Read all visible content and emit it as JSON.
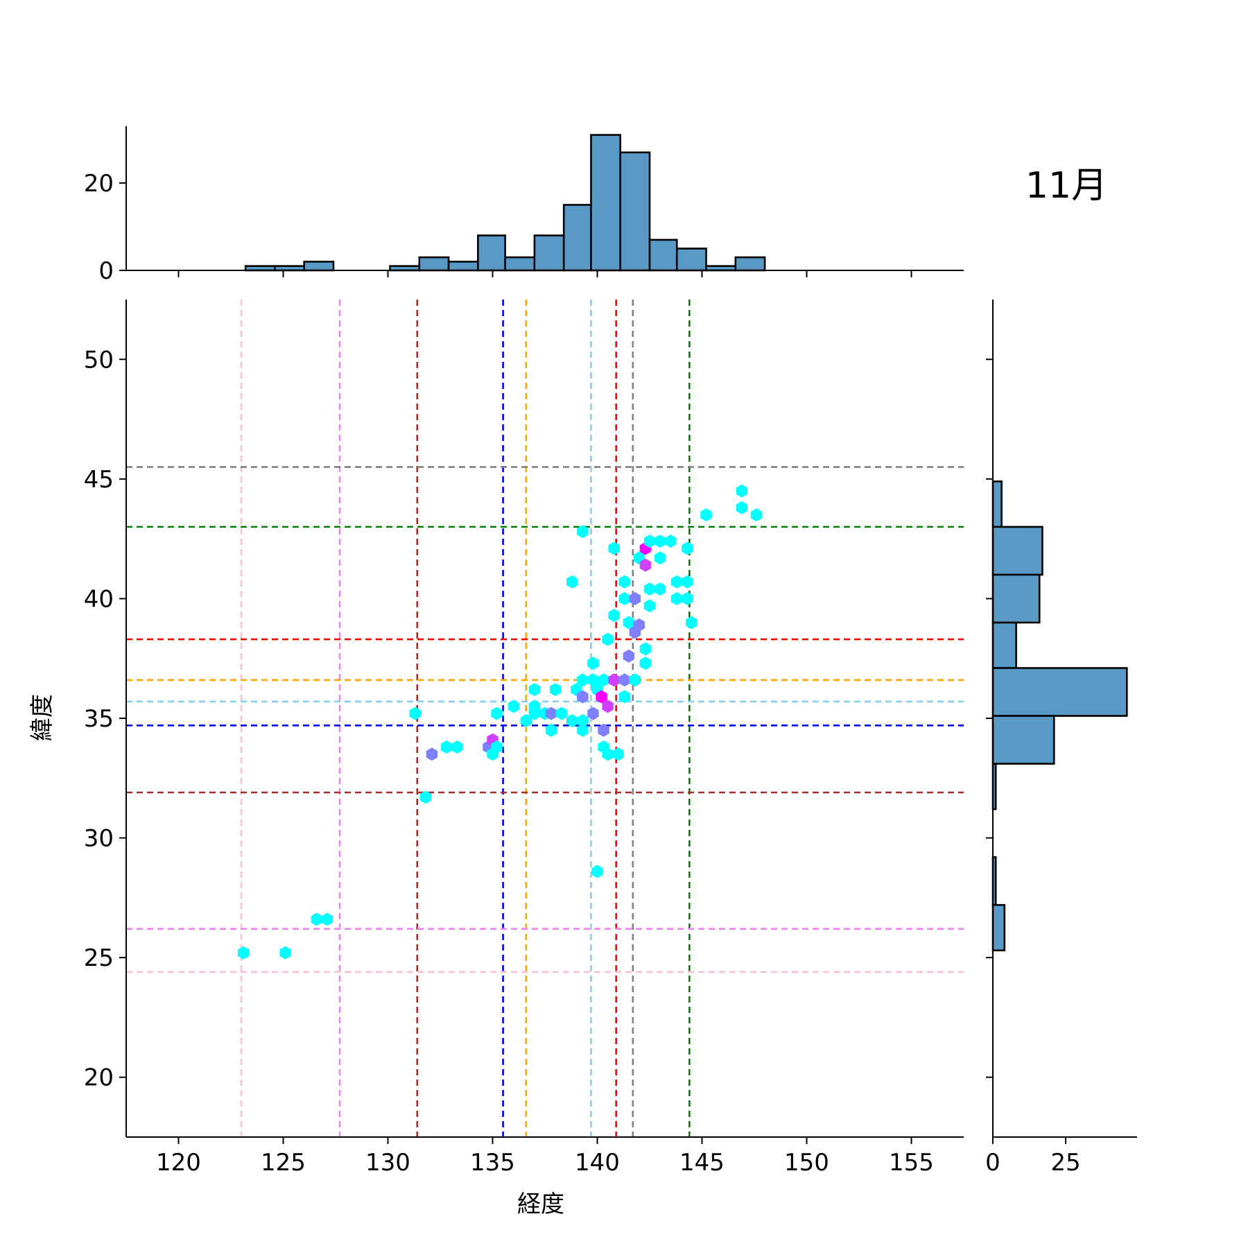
{
  "chart_data": {
    "type": "hexbin-joint",
    "title": "11月",
    "xlabel": "経度",
    "ylabel": "緯度",
    "xlim": [
      117.5,
      157.5
    ],
    "ylim": [
      17.5,
      52.5
    ],
    "xticks": [
      "120",
      "125",
      "130",
      "135",
      "140",
      "145",
      "150",
      "155"
    ],
    "yticks": [
      "20",
      "25",
      "30",
      "35",
      "40",
      "45",
      "50"
    ],
    "top_hist_yticks": [
      "0",
      "20"
    ],
    "right_hist_xticks": [
      "0",
      "25"
    ],
    "colors": {
      "bar_fill": "#5899c6",
      "hex_low": "#00ffff",
      "hex_mid": "#8080ff",
      "hex_high": "#ff00ff"
    },
    "vlines": [
      {
        "x": 123.0,
        "color": "#ffc0cb"
      },
      {
        "x": 127.7,
        "color": "#ee82ee"
      },
      {
        "x": 131.4,
        "color": "#a52a2a"
      },
      {
        "x": 135.5,
        "color": "#0000ff"
      },
      {
        "x": 136.6,
        "color": "#ffa500"
      },
      {
        "x": 139.7,
        "color": "#87ceeb"
      },
      {
        "x": 140.9,
        "color": "#ff0000"
      },
      {
        "x": 141.7,
        "color": "#808080"
      },
      {
        "x": 144.4,
        "color": "#008000"
      }
    ],
    "hlines": [
      {
        "y": 45.5,
        "color": "#808080"
      },
      {
        "y": 43.0,
        "color": "#008000"
      },
      {
        "y": 38.3,
        "color": "#ff0000"
      },
      {
        "y": 36.6,
        "color": "#ffa500"
      },
      {
        "y": 35.7,
        "color": "#87ceeb"
      },
      {
        "y": 34.7,
        "color": "#0000ff"
      },
      {
        "y": 31.9,
        "color": "#a52a2a"
      },
      {
        "y": 26.2,
        "color": "#ee82ee"
      },
      {
        "y": 24.4,
        "color": "#ffc0cb"
      }
    ],
    "x_hist": {
      "bins": [
        [
          123.2,
          124.6,
          1
        ],
        [
          124.6,
          126.0,
          1
        ],
        [
          126.0,
          127.4,
          2
        ],
        [
          127.4,
          128.8,
          0
        ],
        [
          128.8,
          130.1,
          0
        ],
        [
          130.1,
          131.5,
          1
        ],
        [
          131.5,
          132.9,
          3
        ],
        [
          132.9,
          134.3,
          2
        ],
        [
          134.3,
          135.6,
          8
        ],
        [
          135.6,
          137.0,
          3
        ],
        [
          137.0,
          138.4,
          8
        ],
        [
          138.4,
          139.7,
          15
        ],
        [
          139.7,
          141.1,
          31
        ],
        [
          141.1,
          142.5,
          27
        ],
        [
          142.5,
          143.8,
          7
        ],
        [
          143.8,
          145.2,
          5
        ],
        [
          145.2,
          146.6,
          1
        ],
        [
          146.6,
          148.0,
          3
        ]
      ]
    },
    "y_hist": {
      "bins": [
        [
          43.0,
          44.9,
          3
        ],
        [
          41.0,
          43.0,
          17
        ],
        [
          39.0,
          41.0,
          16
        ],
        [
          37.1,
          39.0,
          8
        ],
        [
          35.1,
          37.1,
          46
        ],
        [
          33.1,
          35.1,
          21
        ],
        [
          31.2,
          33.1,
          1
        ],
        [
          29.2,
          31.2,
          0
        ],
        [
          27.2,
          29.2,
          1
        ],
        [
          25.3,
          27.2,
          4
        ]
      ]
    },
    "hexbins": [
      {
        "x": 123.1,
        "y": 25.2,
        "count": 1
      },
      {
        "x": 125.1,
        "y": 25.2,
        "count": 1
      },
      {
        "x": 126.6,
        "y": 26.6,
        "count": 1
      },
      {
        "x": 127.1,
        "y": 26.6,
        "count": 1
      },
      {
        "x": 131.3,
        "y": 35.2,
        "count": 1
      },
      {
        "x": 131.8,
        "y": 31.7,
        "count": 1
      },
      {
        "x": 132.1,
        "y": 33.5,
        "count": 2
      },
      {
        "x": 132.8,
        "y": 33.8,
        "count": 1
      },
      {
        "x": 133.3,
        "y": 33.8,
        "count": 1
      },
      {
        "x": 134.8,
        "y": 33.8,
        "count": 2
      },
      {
        "x": 135.0,
        "y": 34.1,
        "count": 3
      },
      {
        "x": 135.0,
        "y": 33.5,
        "count": 1
      },
      {
        "x": 135.2,
        "y": 33.8,
        "count": 1
      },
      {
        "x": 135.2,
        "y": 35.2,
        "count": 1
      },
      {
        "x": 136.0,
        "y": 35.5,
        "count": 1
      },
      {
        "x": 136.6,
        "y": 34.9,
        "count": 1
      },
      {
        "x": 137.0,
        "y": 35.2,
        "count": 1
      },
      {
        "x": 137.0,
        "y": 35.5,
        "count": 1
      },
      {
        "x": 137.0,
        "y": 36.2,
        "count": 1
      },
      {
        "x": 137.5,
        "y": 35.2,
        "count": 1
      },
      {
        "x": 137.8,
        "y": 35.2,
        "count": 2
      },
      {
        "x": 137.8,
        "y": 34.5,
        "count": 1
      },
      {
        "x": 138.0,
        "y": 36.2,
        "count": 1
      },
      {
        "x": 138.3,
        "y": 35.2,
        "count": 1
      },
      {
        "x": 138.8,
        "y": 34.9,
        "count": 1
      },
      {
        "x": 138.8,
        "y": 40.7,
        "count": 1
      },
      {
        "x": 139.0,
        "y": 36.2,
        "count": 1
      },
      {
        "x": 139.3,
        "y": 36.6,
        "count": 1
      },
      {
        "x": 139.3,
        "y": 35.9,
        "count": 2
      },
      {
        "x": 139.3,
        "y": 34.9,
        "count": 1
      },
      {
        "x": 139.3,
        "y": 34.5,
        "count": 1
      },
      {
        "x": 139.3,
        "y": 42.8,
        "count": 1
      },
      {
        "x": 139.8,
        "y": 35.2,
        "count": 2
      },
      {
        "x": 139.8,
        "y": 36.6,
        "count": 1
      },
      {
        "x": 139.8,
        "y": 37.3,
        "count": 1
      },
      {
        "x": 140.0,
        "y": 36.2,
        "count": 1
      },
      {
        "x": 140.0,
        "y": 28.6,
        "count": 1
      },
      {
        "x": 140.2,
        "y": 35.9,
        "count": 4
      },
      {
        "x": 140.3,
        "y": 36.6,
        "count": 1
      },
      {
        "x": 140.3,
        "y": 34.5,
        "count": 2
      },
      {
        "x": 140.3,
        "y": 33.8,
        "count": 1
      },
      {
        "x": 140.5,
        "y": 35.5,
        "count": 3
      },
      {
        "x": 140.5,
        "y": 38.3,
        "count": 1
      },
      {
        "x": 140.5,
        "y": 33.5,
        "count": 1
      },
      {
        "x": 140.8,
        "y": 36.6,
        "count": 3
      },
      {
        "x": 140.8,
        "y": 39.3,
        "count": 1
      },
      {
        "x": 140.8,
        "y": 42.1,
        "count": 1
      },
      {
        "x": 141.0,
        "y": 33.5,
        "count": 1
      },
      {
        "x": 141.3,
        "y": 36.6,
        "count": 2
      },
      {
        "x": 141.3,
        "y": 35.9,
        "count": 1
      },
      {
        "x": 141.3,
        "y": 40.0,
        "count": 1
      },
      {
        "x": 141.3,
        "y": 40.7,
        "count": 1
      },
      {
        "x": 141.5,
        "y": 39.0,
        "count": 1
      },
      {
        "x": 141.5,
        "y": 37.6,
        "count": 2
      },
      {
        "x": 141.8,
        "y": 36.6,
        "count": 1
      },
      {
        "x": 141.8,
        "y": 38.6,
        "count": 2
      },
      {
        "x": 141.8,
        "y": 40.0,
        "count": 2
      },
      {
        "x": 142.0,
        "y": 38.9,
        "count": 2
      },
      {
        "x": 142.0,
        "y": 41.7,
        "count": 1
      },
      {
        "x": 142.3,
        "y": 42.1,
        "count": 4
      },
      {
        "x": 142.3,
        "y": 41.4,
        "count": 3
      },
      {
        "x": 142.3,
        "y": 37.9,
        "count": 1
      },
      {
        "x": 142.3,
        "y": 37.3,
        "count": 1
      },
      {
        "x": 142.5,
        "y": 42.4,
        "count": 1
      },
      {
        "x": 142.5,
        "y": 40.4,
        "count": 1
      },
      {
        "x": 142.5,
        "y": 39.7,
        "count": 1
      },
      {
        "x": 143.0,
        "y": 42.4,
        "count": 1
      },
      {
        "x": 143.0,
        "y": 41.7,
        "count": 1
      },
      {
        "x": 143.0,
        "y": 40.4,
        "count": 1
      },
      {
        "x": 143.5,
        "y": 42.4,
        "count": 1
      },
      {
        "x": 143.8,
        "y": 40.7,
        "count": 1
      },
      {
        "x": 143.8,
        "y": 40.0,
        "count": 1
      },
      {
        "x": 144.3,
        "y": 42.1,
        "count": 1
      },
      {
        "x": 144.3,
        "y": 40.7,
        "count": 1
      },
      {
        "x": 144.3,
        "y": 40.0,
        "count": 1
      },
      {
        "x": 144.5,
        "y": 39.0,
        "count": 1
      },
      {
        "x": 145.2,
        "y": 43.5,
        "count": 1
      },
      {
        "x": 146.9,
        "y": 44.5,
        "count": 1
      },
      {
        "x": 146.9,
        "y": 43.8,
        "count": 1
      },
      {
        "x": 147.6,
        "y": 43.5,
        "count": 1
      }
    ]
  }
}
